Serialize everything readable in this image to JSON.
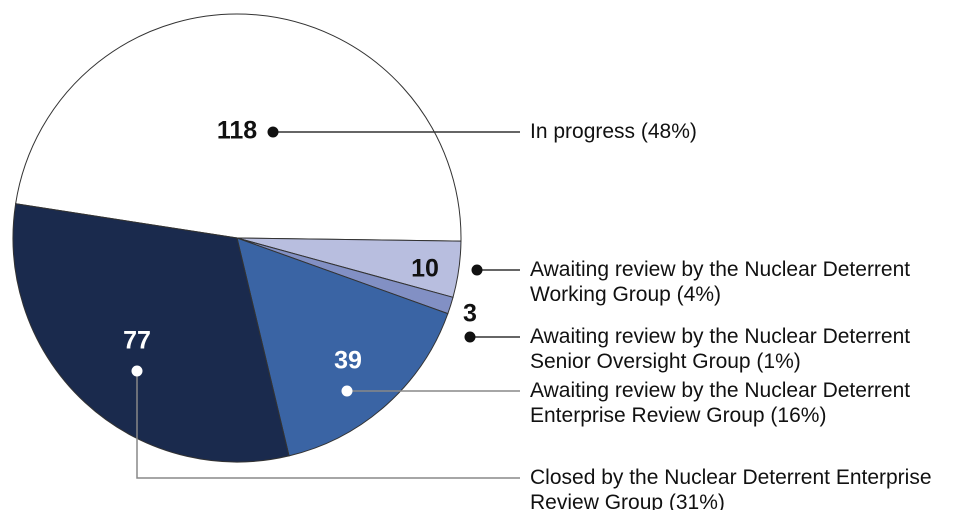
{
  "chart_data": {
    "type": "pie",
    "categories": [
      "In progress (48%)",
      "Awaiting review by the Nuclear Deterrent Working Group (4%)",
      "Awaiting review by the Nuclear Deterrent Senior Oversight Group (1%)",
      "Awaiting review by the Nuclear Deterrent Enterprise Review Group (16%)",
      "Closed by the Nuclear Deterrent Enterprise Review Group (31%)"
    ],
    "values": [
      118,
      10,
      3,
      39,
      77
    ],
    "colors": [
      "#ffffff",
      "#b8bedf",
      "#8290c4",
      "#3a64a4",
      "#1a2a4d"
    ]
  }
}
